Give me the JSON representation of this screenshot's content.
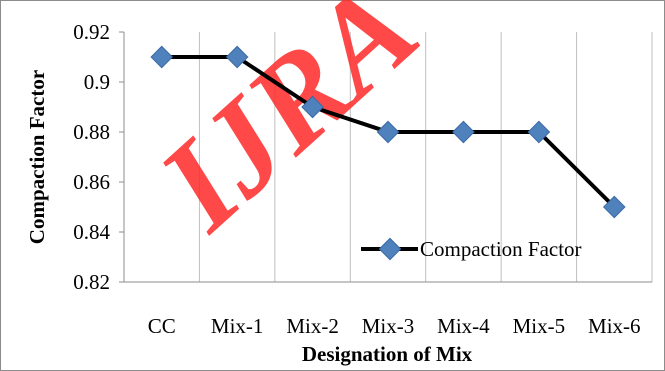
{
  "watermark": "IJRA",
  "chart_data": {
    "type": "line",
    "title": "",
    "xlabel": "Designation of Mix",
    "ylabel": "Compaction Factor",
    "categories": [
      "CC",
      "Mix-1",
      "Mix-2",
      "Mix-3",
      "Mix-4",
      "Mix-5",
      "Mix-6"
    ],
    "series": [
      {
        "name": "Compaction Factor",
        "values": [
          0.91,
          0.91,
          0.89,
          0.88,
          0.88,
          0.88,
          0.85
        ]
      }
    ],
    "ylim": [
      0.82,
      0.92
    ],
    "yticks": [
      0.82,
      0.84,
      0.86,
      0.88,
      0.9,
      0.92
    ],
    "ytick_labels": [
      "0.82",
      "0.84",
      "0.86",
      "0.88",
      "0.9",
      "0.92"
    ],
    "grid": "vertical",
    "legend": "bottom-right",
    "colors": {
      "line": "#000000",
      "marker": "#4f81bd",
      "marker_edge": "#3a6ba5",
      "grid": "#bfbfbf",
      "watermark": "#ff2a2a"
    }
  }
}
